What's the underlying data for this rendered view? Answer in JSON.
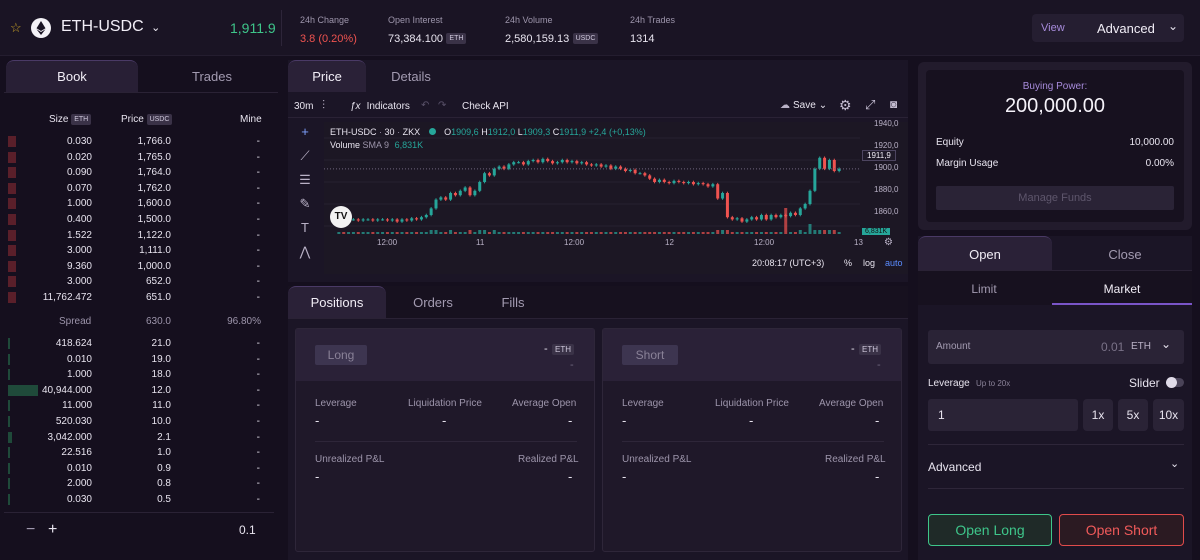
{
  "header": {
    "pair": "ETH-USDC",
    "price": "1,911.9",
    "stats": [
      {
        "label": "24h Change",
        "value": "3.8 (0.20%)",
        "badge": ""
      },
      {
        "label": "Open Interest",
        "value": "73,384.100",
        "badge": "ETH"
      },
      {
        "label": "24h Volume",
        "value": "2,580,159.13",
        "badge": "USDC"
      },
      {
        "label": "24h Trades",
        "value": "1314",
        "badge": ""
      }
    ],
    "view_label": "View",
    "view_value": "Advanced"
  },
  "book": {
    "tabs": [
      "Book",
      "Trades"
    ],
    "columns": {
      "size": "Size",
      "size_unit": "ETH",
      "price": "Price",
      "price_unit": "USDC",
      "mine": "Mine"
    },
    "asks": [
      {
        "size": "0.030",
        "price": "1,766.0",
        "mine": "-"
      },
      {
        "size": "0.020",
        "price": "1,765.0",
        "mine": "-"
      },
      {
        "size": "0.090",
        "price": "1,764.0",
        "mine": "-"
      },
      {
        "size": "0.070",
        "price": "1,762.0",
        "mine": "-"
      },
      {
        "size": "1.000",
        "price": "1,600.0",
        "mine": "-"
      },
      {
        "size": "0.400",
        "price": "1,500.0",
        "mine": "-"
      },
      {
        "size": "1.522",
        "price": "1,122.0",
        "mine": "-"
      },
      {
        "size": "3.000",
        "price": "1,111.0",
        "mine": "-"
      },
      {
        "size": "9.360",
        "price": "1,000.0",
        "mine": "-"
      },
      {
        "size": "3.000",
        "price": "652.0",
        "mine": "-"
      },
      {
        "size": "11,762.472",
        "price": "651.0",
        "mine": "-"
      }
    ],
    "spread": {
      "label": "Spread",
      "value": "630.0",
      "pct": "96.80%"
    },
    "bids": [
      {
        "size": "418.624",
        "price": "21.0",
        "mine": "-"
      },
      {
        "size": "0.010",
        "price": "19.0",
        "mine": "-"
      },
      {
        "size": "1.000",
        "price": "18.0",
        "mine": "-"
      },
      {
        "size": "40,944.000",
        "price": "12.0",
        "mine": "-"
      },
      {
        "size": "11.000",
        "price": "11.0",
        "mine": "-"
      },
      {
        "size": "520.030",
        "price": "10.0",
        "mine": "-"
      },
      {
        "size": "3,042.000",
        "price": "2.1",
        "mine": "-"
      },
      {
        "size": "22.516",
        "price": "1.0",
        "mine": "-"
      },
      {
        "size": "0.010",
        "price": "0.9",
        "mine": "-"
      },
      {
        "size": "2.000",
        "price": "0.8",
        "mine": "-"
      },
      {
        "size": "0.030",
        "price": "0.5",
        "mine": "-"
      }
    ],
    "grouping": "0.1"
  },
  "chart_panel": {
    "tabs": [
      "Price",
      "Details"
    ],
    "toolbar": {
      "interval": "30m",
      "indicators": "Indicators",
      "check_api": "Check API",
      "save": "Save"
    },
    "legend": {
      "symbol": "ETH-USDC",
      "interval": "30",
      "exchange": "ZKX",
      "o": "1909,6",
      "h": "1912,0",
      "l": "1909,3",
      "c": "1911,9",
      "chg": "+2,4 (+0,13%)",
      "volume_label": "Volume",
      "sma": "SMA 9",
      "volume_value": "6,831K"
    },
    "price_axis": [
      "1940,0",
      "1920,0",
      "1900,0",
      "1880,0",
      "1860,0"
    ],
    "last_price_tag": "1911,9",
    "volume_tag": "6,831K",
    "time_axis": [
      "12:00",
      "11",
      "12:00",
      "12",
      "12:00",
      "13"
    ],
    "clock": "20:08:17 (UTC+3)",
    "pct_btn": "%",
    "log_btn": "log",
    "auto_btn": "auto",
    "colors": {
      "up": "#26a69a",
      "down": "#ef5350"
    }
  },
  "positions": {
    "tabs": [
      "Positions",
      "Orders",
      "Fills"
    ],
    "cards": [
      {
        "side": "Long",
        "amount": "-",
        "unit": "ETH",
        "sub": "-",
        "leverage_label": "Leverage",
        "leverage": "-",
        "liq_label": "Liquidation Price",
        "liq": "-",
        "avg_label": "Average Open",
        "avg": "-",
        "upnl_label": "Unrealized P&L",
        "upnl": "-",
        "rpnl_label": "Realized P&L",
        "rpnl": "-"
      },
      {
        "side": "Short",
        "amount": "-",
        "unit": "ETH",
        "sub": "-",
        "leverage_label": "Leverage",
        "leverage": "-",
        "liq_label": "Liquidation Price",
        "liq": "-",
        "avg_label": "Average Open",
        "avg": "-",
        "upnl_label": "Unrealized P&L",
        "upnl": "-",
        "rpnl_label": "Realized P&L",
        "rpnl": "-"
      }
    ]
  },
  "account": {
    "buying_power_label": "Buying Power:",
    "buying_power": "200,000.00",
    "equity_label": "Equity",
    "equity": "10,000.00",
    "margin_label": "Margin Usage",
    "margin": "0.00%",
    "manage_funds": "Manage Funds"
  },
  "order": {
    "tabs": [
      "Open",
      "Close"
    ],
    "types": [
      "Limit",
      "Market"
    ],
    "amount_label": "Amount",
    "amount_placeholder": "0.01",
    "amount_unit": "ETH",
    "leverage_label": "Leverage",
    "leverage_hint": "Up to 20x",
    "slider_label": "Slider",
    "leverage_value": "1",
    "quick": [
      "1x",
      "5x",
      "10x"
    ],
    "advanced": "Advanced",
    "open_long": "Open Long",
    "open_short": "Open Short"
  }
}
